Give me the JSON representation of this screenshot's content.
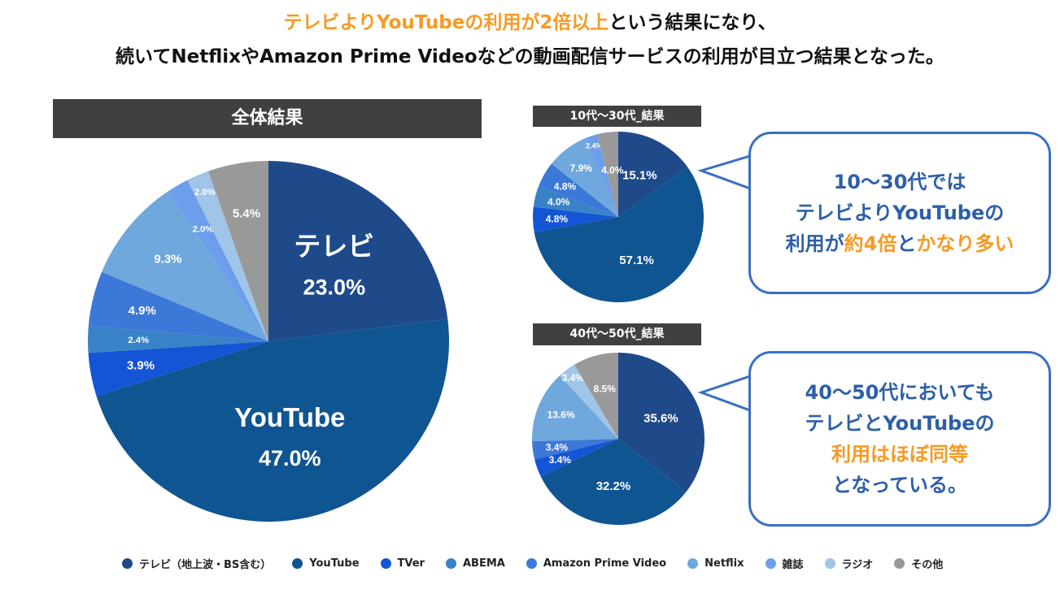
{
  "title": {
    "line1_orange": "テレビよりYouTubeの利用が2倍以上",
    "line1_rest": "という結果になり、",
    "line2": "続いてNetflixやAmazon Prime Videoなどの動画配信サービスの利用が目立つ結果となった。"
  },
  "chart_data": [
    {
      "type": "pie",
      "title": "全体結果",
      "categories": [
        "テレビ",
        "YouTube",
        "TVer",
        "ABEMA",
        "Amazon Prime Video",
        "Netflix",
        "雑誌",
        "ラジオ",
        "その他"
      ],
      "values": [
        23.0,
        47.0,
        3.9,
        2.4,
        4.9,
        9.3,
        2.0,
        2.0,
        5.4
      ],
      "labels": [
        "23.0%",
        "47.0%",
        "3.9%",
        "2.4%",
        "4.9%",
        "9.3%",
        "2.0%",
        "2.0%",
        "5.4%"
      ],
      "name_labels": [
        "テレビ",
        "YouTube"
      ]
    },
    {
      "type": "pie",
      "title": "10代〜30代_結果",
      "categories": [
        "テレビ",
        "YouTube",
        "TVer",
        "ABEMA",
        "Amazon Prime Video",
        "Netflix",
        "雑誌",
        "ラジオ",
        "その他"
      ],
      "values": [
        15.1,
        57.1,
        4.8,
        4.0,
        4.8,
        7.9,
        2.4,
        0,
        4.0
      ],
      "labels": [
        "15.1%",
        "57.1%",
        "4.8%",
        "4.0%",
        "4.8%",
        "7.9%",
        "2.4%",
        "",
        "4.0%"
      ]
    },
    {
      "type": "pie",
      "title": "40代〜50代_結果",
      "categories": [
        "テレビ",
        "YouTube",
        "TVer",
        "ABEMA",
        "Amazon Prime Video",
        "Netflix",
        "雑誌",
        "ラジオ",
        "その他"
      ],
      "values": [
        35.6,
        32.2,
        3.4,
        0,
        3.4,
        13.6,
        0,
        3.4,
        8.5
      ],
      "labels": [
        "35.6%",
        "32.2%",
        "3.4%",
        "",
        "3.4%",
        "13.6%",
        "",
        "3.4%",
        "8.5%"
      ]
    }
  ],
  "colors": [
    "#1f4a8a",
    "#0f5592",
    "#1455d6",
    "#3a82c8",
    "#3c78d8",
    "#6fa8dc",
    "#6d9eeb",
    "#9fc5e8",
    "#999999"
  ],
  "legend": [
    "テレビ（地上波・BS含む）",
    "YouTube",
    "TVer",
    "ABEMA",
    "Amazon Prime Video",
    "Netflix",
    "雑誌",
    "ラジオ",
    "その他"
  ],
  "callout1": {
    "l1": "10〜30代では",
    "l2": "テレビよりYouTubeの",
    "l3a": "利用が",
    "l3b": "約4倍",
    "l3c": "と",
    "l3d": "かなり多い"
  },
  "callout2": {
    "l1": "40〜50代においても",
    "l2": "テレビとYouTubeの",
    "l3": "利用はほぼ同等",
    "l4": "となっている。"
  }
}
